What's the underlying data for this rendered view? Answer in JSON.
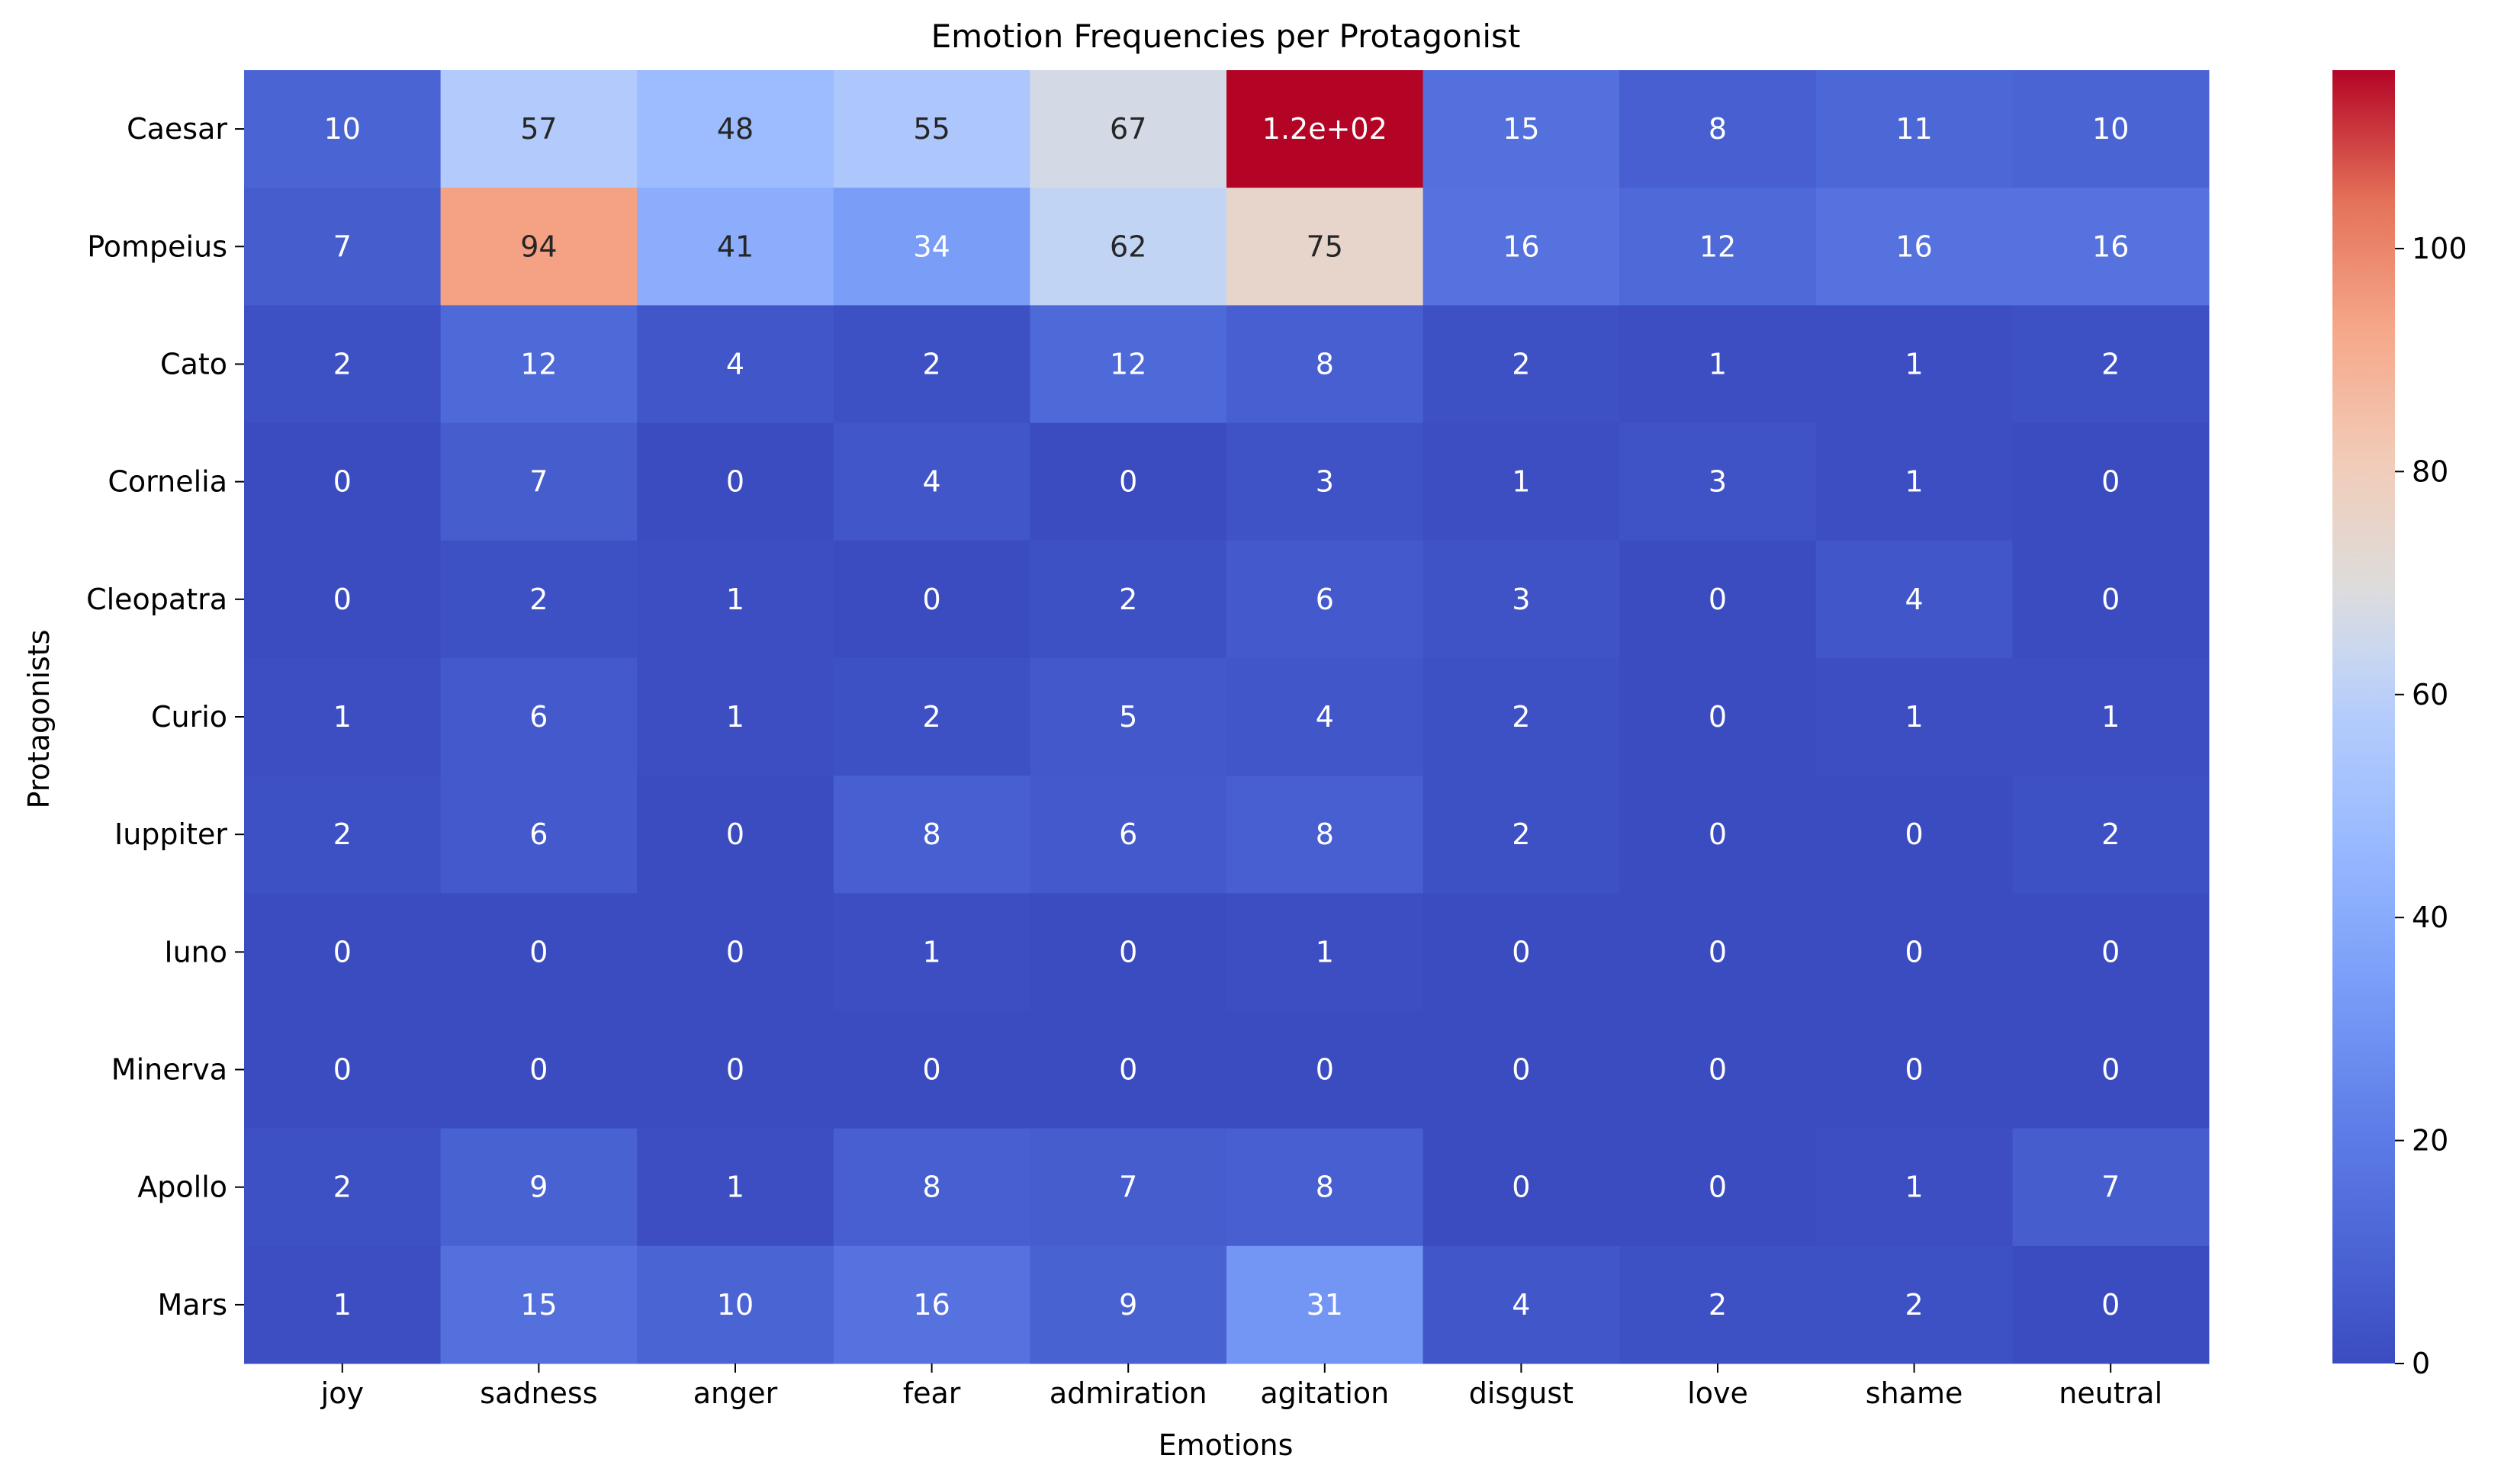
{
  "chart_data": {
    "type": "heatmap",
    "title": "Emotion Frequencies per Protagonist",
    "xlabel": "Emotions",
    "ylabel": "Protagonists",
    "columns": [
      "joy",
      "sadness",
      "anger",
      "fear",
      "admiration",
      "agitation",
      "disgust",
      "love",
      "shame",
      "neutral"
    ],
    "rows": [
      "Caesar",
      "Pompeius",
      "Cato",
      "Cornelia",
      "Cleopatra",
      "Curio",
      "Iuppiter",
      "Iuno",
      "Minerva",
      "Apollo",
      "Mars"
    ],
    "values": [
      [
        10,
        57,
        48,
        55,
        67,
        116,
        15,
        8,
        11,
        10
      ],
      [
        7,
        94,
        41,
        34,
        62,
        75,
        16,
        12,
        16,
        16
      ],
      [
        2,
        12,
        4,
        2,
        12,
        8,
        2,
        1,
        1,
        2
      ],
      [
        0,
        7,
        0,
        4,
        0,
        3,
        1,
        3,
        1,
        0
      ],
      [
        0,
        2,
        1,
        0,
        2,
        6,
        3,
        0,
        4,
        0
      ],
      [
        1,
        6,
        1,
        2,
        5,
        4,
        2,
        0,
        1,
        1
      ],
      [
        2,
        6,
        0,
        8,
        6,
        8,
        2,
        0,
        0,
        2
      ],
      [
        0,
        0,
        0,
        1,
        0,
        1,
        0,
        0,
        0,
        0
      ],
      [
        0,
        0,
        0,
        0,
        0,
        0,
        0,
        0,
        0,
        0
      ],
      [
        2,
        9,
        1,
        8,
        7,
        8,
        0,
        0,
        1,
        7
      ],
      [
        1,
        15,
        10,
        16,
        9,
        31,
        4,
        2,
        2,
        0
      ]
    ],
    "annotations": [
      [
        "10",
        "57",
        "48",
        "55",
        "67",
        "1.2e+02",
        "15",
        "8",
        "11",
        "10"
      ],
      [
        "7",
        "94",
        "41",
        "34",
        "62",
        "75",
        "16",
        "12",
        "16",
        "16"
      ],
      [
        "2",
        "12",
        "4",
        "2",
        "12",
        "8",
        "2",
        "1",
        "1",
        "2"
      ],
      [
        "0",
        "7",
        "0",
        "4",
        "0",
        "3",
        "1",
        "3",
        "1",
        "0"
      ],
      [
        "0",
        "2",
        "1",
        "0",
        "2",
        "6",
        "3",
        "0",
        "4",
        "0"
      ],
      [
        "1",
        "6",
        "1",
        "2",
        "5",
        "4",
        "2",
        "0",
        "1",
        "1"
      ],
      [
        "2",
        "6",
        "0",
        "8",
        "6",
        "8",
        "2",
        "0",
        "0",
        "2"
      ],
      [
        "0",
        "0",
        "0",
        "1",
        "0",
        "1",
        "0",
        "0",
        "0",
        "0"
      ],
      [
        "0",
        "0",
        "0",
        "0",
        "0",
        "0",
        "0",
        "0",
        "0",
        "0"
      ],
      [
        "2",
        "9",
        "1",
        "8",
        "7",
        "8",
        "0",
        "0",
        "1",
        "7"
      ],
      [
        "1",
        "15",
        "10",
        "16",
        "9",
        "31",
        "4",
        "2",
        "2",
        "0"
      ]
    ],
    "colormap": "coolwarm",
    "vmin": 0,
    "vmax": 116,
    "colorbar": {
      "ticks": [
        0,
        20,
        40,
        60,
        80,
        100
      ],
      "tick_labels": [
        "0",
        "20",
        "40",
        "60",
        "80",
        "100"
      ]
    },
    "colors": {
      "low": "#3b4cc0",
      "mid": "#dddddd",
      "high": "#b40426",
      "annotation_light": "#ffffff",
      "annotation_dark": "#262626",
      "text": "#000000"
    }
  }
}
